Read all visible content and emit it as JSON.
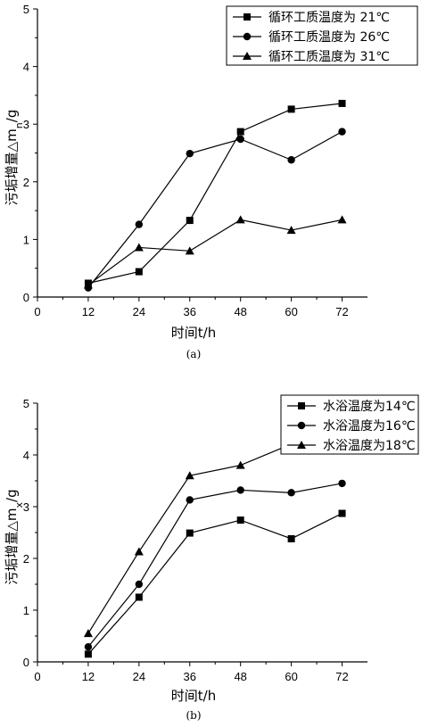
{
  "chart_data": [
    {
      "type": "line",
      "panel_label": "(a)",
      "xlabel": "时间t/h",
      "ylabel_main": "污垢增量△m",
      "ylabel_sub": "n",
      "ylabel_unit": "/g",
      "xlim": [
        0,
        78
      ],
      "ylim": [
        0,
        5
      ],
      "xticks": [
        0,
        12,
        24,
        36,
        48,
        60,
        72
      ],
      "yticks": [
        0,
        1,
        2,
        3,
        4,
        5
      ],
      "x": [
        12,
        24,
        36,
        48,
        60,
        72
      ],
      "legend_position": "top-right",
      "series": [
        {
          "name": "循环工质温度为 21℃",
          "marker": "square",
          "values": [
            0.24,
            0.44,
            1.33,
            2.87,
            3.26,
            3.36
          ]
        },
        {
          "name": "循环工质温度为 26℃",
          "marker": "circle",
          "values": [
            0.16,
            1.26,
            2.49,
            2.74,
            2.38,
            2.87
          ]
        },
        {
          "name": "循环工质温度为 31℃",
          "marker": "triangle",
          "values": [
            0.21,
            0.86,
            0.8,
            1.34,
            1.16,
            1.34
          ]
        }
      ]
    },
    {
      "type": "line",
      "panel_label": "(b)",
      "xlabel": "时间t/h",
      "ylabel_main": "污垢增量△m",
      "ylabel_sub": "x",
      "ylabel_unit": "/g",
      "xlim": [
        0,
        78
      ],
      "ylim": [
        0,
        5
      ],
      "xticks": [
        0,
        12,
        24,
        36,
        48,
        60,
        72
      ],
      "yticks": [
        0,
        1,
        2,
        3,
        4,
        5
      ],
      "x": [
        12,
        24,
        36,
        48,
        60,
        72
      ],
      "legend_position": "top-right",
      "series": [
        {
          "name": "水浴温度为14℃",
          "marker": "square",
          "values": [
            0.15,
            1.25,
            2.49,
            2.74,
            2.38,
            2.87
          ]
        },
        {
          "name": "水浴温度为16℃",
          "marker": "circle",
          "values": [
            0.29,
            1.5,
            3.13,
            3.32,
            3.27,
            3.45
          ]
        },
        {
          "name": "水浴温度为18℃",
          "marker": "triangle",
          "values": [
            0.55,
            2.13,
            3.6,
            3.8,
            4.21,
            4.23
          ]
        }
      ]
    }
  ]
}
